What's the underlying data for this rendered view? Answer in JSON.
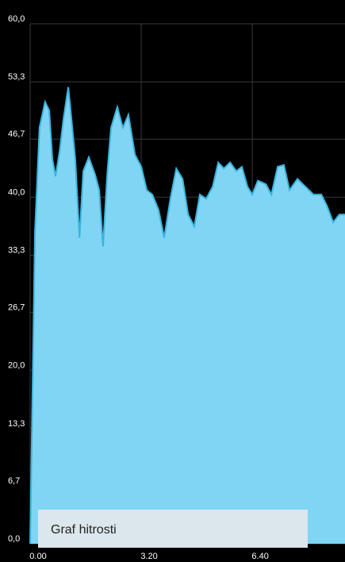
{
  "chart_data": {
    "type": "area",
    "legend": "Graf hitrosti",
    "color": "#7fd5f3",
    "line_color": "#3cb4de",
    "grid": true,
    "xlim": [
      0,
      9.07
    ],
    "ylim": [
      0,
      60
    ],
    "xticks": [
      {
        "value": 0,
        "label": "0.00"
      },
      {
        "value": 3.2,
        "label": "3.20"
      },
      {
        "value": 6.4,
        "label": "6.40"
      }
    ],
    "yticks": [
      {
        "value": 0,
        "label": "0,0"
      },
      {
        "value": 6.7,
        "label": "6,7"
      },
      {
        "value": 13.3,
        "label": "13,3"
      },
      {
        "value": 20,
        "label": "20,0"
      },
      {
        "value": 26.7,
        "label": "26,7"
      },
      {
        "value": 33.3,
        "label": "33,3"
      },
      {
        "value": 40,
        "label": "40,0"
      },
      {
        "value": 46.7,
        "label": "46,7"
      },
      {
        "value": 53.3,
        "label": "53,3"
      },
      {
        "value": 60,
        "label": "60,0"
      }
    ],
    "x": [
      0,
      0.14,
      0.27,
      0.43,
      0.55,
      0.64,
      0.73,
      0.85,
      0.96,
      1.1,
      1.19,
      1.3,
      1.42,
      1.53,
      1.69,
      1.87,
      1.99,
      2.1,
      2.22,
      2.33,
      2.51,
      2.67,
      2.83,
      3.02,
      3.2,
      3.36,
      3.52,
      3.7,
      3.86,
      4.04,
      4.21,
      4.39,
      4.55,
      4.73,
      4.89,
      5.07,
      5.26,
      5.42,
      5.58,
      5.76,
      5.94,
      6.1,
      6.26,
      6.4,
      6.56,
      6.79,
      6.95,
      7.13,
      7.31,
      7.47,
      7.7,
      7.93,
      8.16,
      8.39,
      8.55,
      8.73,
      8.91,
      9.07
    ],
    "values": [
      0,
      36,
      48,
      51,
      50,
      44.4,
      42.4,
      45.3,
      49,
      52.7,
      49,
      44.4,
      35.3,
      43,
      44.6,
      42.6,
      40.8,
      34.3,
      42.6,
      48,
      50.4,
      48,
      49.5,
      44.9,
      43.5,
      40.8,
      40.3,
      38.5,
      35.3,
      39.8,
      43.3,
      42.1,
      38,
      36.6,
      40.3,
      39.8,
      41.2,
      44,
      43.3,
      44,
      43,
      43.5,
      41.2,
      40.3,
      41.9,
      41.5,
      40.3,
      43.5,
      43.7,
      40.8,
      42.1,
      41.2,
      40.3,
      40.3,
      39,
      37.1,
      38,
      38
    ]
  }
}
